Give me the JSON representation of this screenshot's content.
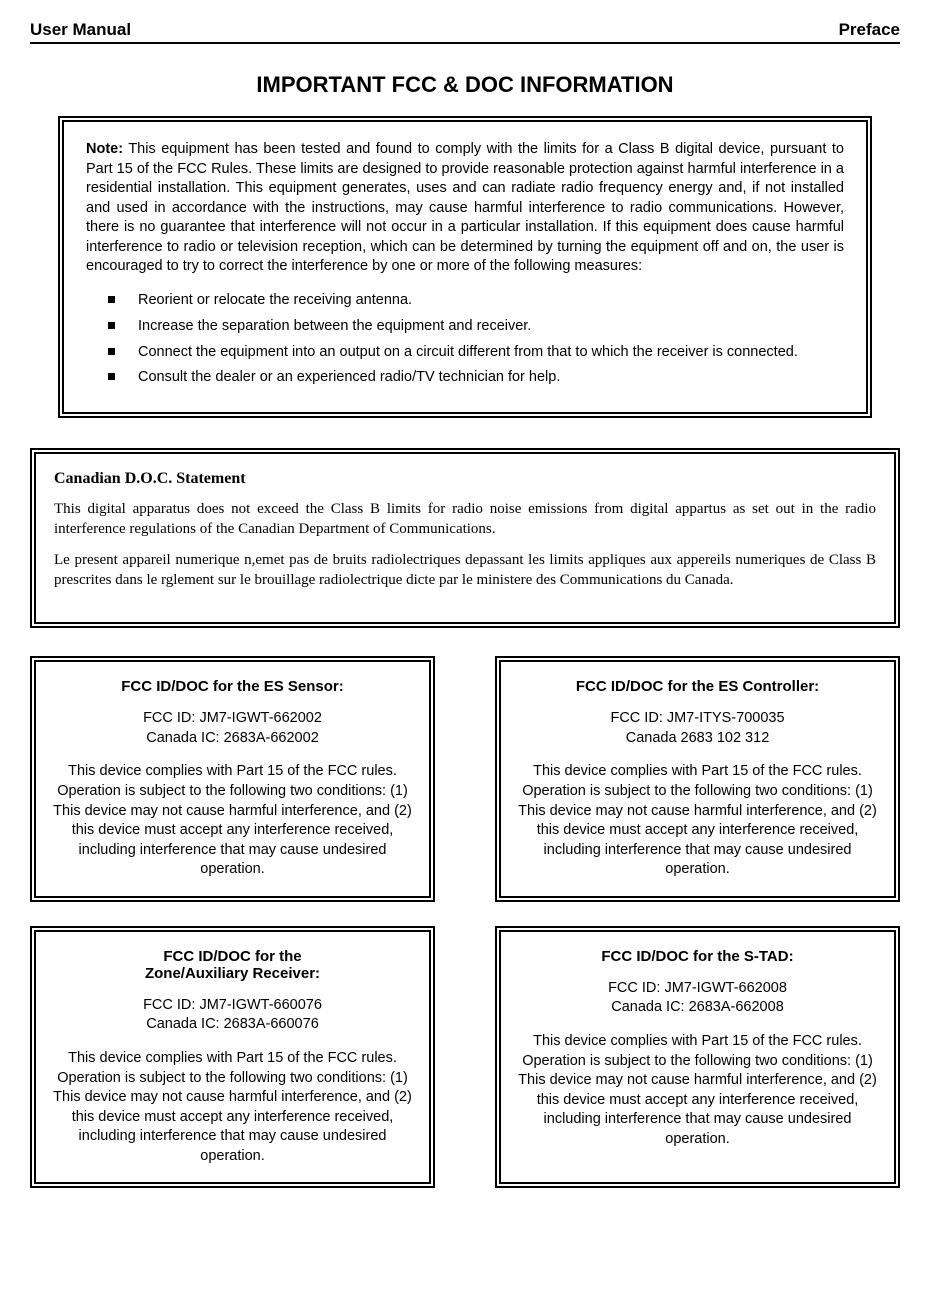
{
  "header": {
    "left": "User Manual",
    "right": "Preface"
  },
  "main_title": "IMPORTANT FCC & DOC INFORMATION",
  "note": {
    "label": "Note:",
    "text": "This equipment has been tested and found to comply with the limits for a Class B digital device, pursuant to Part 15 of the FCC Rules. These limits are designed to provide reasonable protection against harmful interference in a residential installation. This equipment generates, uses and can radiate radio frequency energy and, if not installed and used in accordance with the instructions, may cause harmful interference to radio communications. However, there is no guarantee that interference will not occur in a particular installation. If this equipment does cause harmful interference to radio or television reception, which can be determined by turning the equipment off and on, the user is encouraged to try to correct the interference by one or more of the following measures:",
    "bullets": [
      "Reorient or relocate the receiving antenna.",
      "Increase the separation between the equipment and receiver.",
      "Connect the equipment into an output on a circuit different from that to which the receiver is connected.",
      "Consult the dealer or an experienced radio/TV technician for help."
    ]
  },
  "doc": {
    "title": "Canadian D.O.C. Statement",
    "p1": "This digital apparatus does not exceed the Class B limits for radio noise emissions from digital appartus as set out in the radio interference regulations of the Canadian Department of Communications.",
    "p2": "Le present appareil numerique n,emet pas de bruits radiolectriques depassant les limits appliques aux appereils numeriques de Class B prescrites dans le rglement sur le brouillage radiolectrique dicte par le ministere des Communications du Canada."
  },
  "cards": {
    "es_sensor": {
      "title": "FCC ID/DOC for the ES Sensor:",
      "fcc": "FCC ID: JM7-IGWT-662002",
      "canada": "Canada IC: 2683A-662002",
      "body": "This device complies with Part 15 of the FCC rules. Operation is subject to the following two conditions: (1) This device may not cause harmful interference, and (2) this device must accept any interference received, including interference that may cause undesired operation."
    },
    "es_controller": {
      "title": "FCC ID/DOC for the ES Controller:",
      "fcc": "FCC ID: JM7-ITYS-700035",
      "canada": "Canada 2683 102 312",
      "body": "This device complies with Part 15 of the FCC rules. Operation is subject to the following two conditions: (1) This device may not cause harmful interference, and (2) this device must accept any interference received, including interference that may cause undesired operation."
    },
    "zone_aux": {
      "title_l1": "FCC ID/DOC for the",
      "title_l2": "Zone/Auxiliary Receiver:",
      "fcc": "FCC ID: JM7-IGWT-660076",
      "canada": "Canada IC: 2683A-660076",
      "body": "This device complies with Part 15 of the FCC rules. Operation is subject to the following two conditions: (1) This device may not cause harmful interference, and (2) this device must accept any interference received, including interference that may cause undesired operation."
    },
    "stad": {
      "title": "FCC ID/DOC for the S-TAD:",
      "fcc": "FCC ID: JM7-IGWT-662008",
      "canada": "Canada IC: 2683A-662008",
      "body": "This device complies with Part 15 of the FCC rules. Operation is subject to the following two conditions: (1) This device may not cause harmful interference, and (2) this device must accept any interference received, including interference that may cause undesired operation."
    }
  }
}
